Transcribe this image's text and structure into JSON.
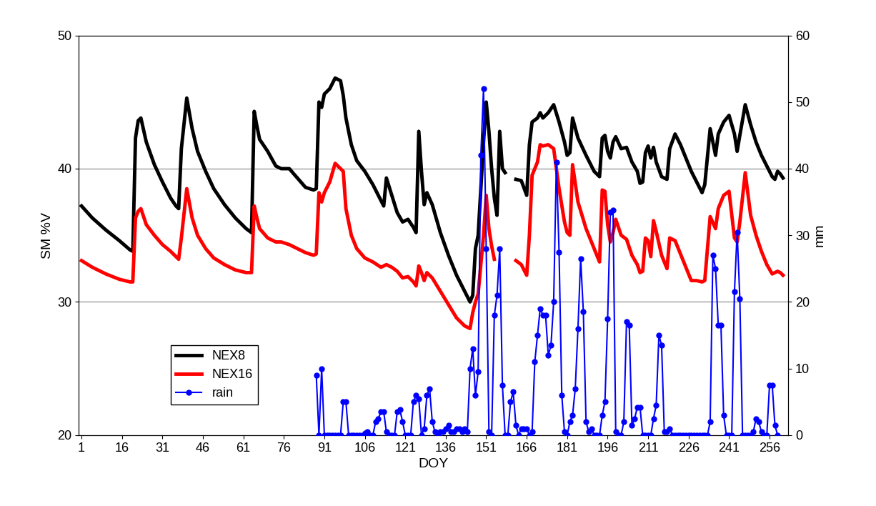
{
  "chart_data": {
    "type": "line",
    "x_label": "DOY",
    "y_label": "SM %V",
    "y2_label": "mm",
    "xlim": [
      0,
      263
    ],
    "xticks": [
      1,
      16,
      31,
      46,
      61,
      76,
      91,
      106,
      121,
      136,
      151,
      166,
      181,
      196,
      211,
      226,
      241,
      256
    ],
    "ylim": [
      20,
      50
    ],
    "yticks": [
      20,
      30,
      40,
      50
    ],
    "y2lim": [
      0,
      60
    ],
    "y2ticks": [
      0,
      10,
      20,
      30,
      40,
      50,
      60
    ],
    "grid": true,
    "legend": "lower left",
    "series": [
      {
        "name": "NEX8",
        "color": "#000000",
        "marker": "none",
        "line_style": "solid",
        "x": [
          1,
          5,
          10,
          15,
          19,
          20,
          21,
          22,
          23,
          25,
          28,
          31,
          34,
          36,
          37,
          38,
          40,
          42,
          44,
          47,
          50,
          54,
          58,
          62,
          64,
          65,
          66,
          67,
          70,
          73,
          75,
          78,
          81,
          84,
          87,
          88,
          89,
          90,
          91,
          93,
          95,
          97,
          98,
          99,
          101,
          103,
          106,
          109,
          112,
          113,
          114,
          116,
          118,
          120,
          122,
          124,
          125,
          126,
          127,
          128,
          129,
          131,
          134,
          137,
          140,
          143,
          145,
          146,
          147,
          148,
          150,
          151,
          152,
          153,
          154,
          155,
          156,
          157,
          158,
          160,
          162,
          164,
          166,
          167,
          168,
          170,
          171,
          172,
          174,
          176,
          178,
          180,
          181,
          182,
          183,
          185,
          188,
          191,
          193,
          194,
          195,
          196,
          197,
          198,
          199,
          201,
          203,
          205,
          207,
          208,
          209,
          210,
          211,
          212,
          213,
          214,
          216,
          218,
          219,
          221,
          223,
          225,
          227,
          229,
          231,
          232,
          234,
          236,
          237,
          239,
          241,
          243,
          244,
          245,
          247,
          249,
          251,
          253,
          255,
          257,
          258,
          259,
          260,
          261
        ],
        "values": [
          37.2,
          36.3,
          35.4,
          34.6,
          33.9,
          33.8,
          42.3,
          43.6,
          43.8,
          42.0,
          40.3,
          39.0,
          37.8,
          37.2,
          37.0,
          41.5,
          45.3,
          43.0,
          41.3,
          39.8,
          38.5,
          37.3,
          36.3,
          35.5,
          35.2,
          44.3,
          43.2,
          42.2,
          41.3,
          40.2,
          40.0,
          40.0,
          39.3,
          38.6,
          38.4,
          38.5,
          45.0,
          44.6,
          45.6,
          46.0,
          46.8,
          46.6,
          45.5,
          43.8,
          41.8,
          40.6,
          39.8,
          38.8,
          37.6,
          37.2,
          39.3,
          38.0,
          36.7,
          36.0,
          36.2,
          35.6,
          35.2,
          42.8,
          39.8,
          37.3,
          38.2,
          37.3,
          35.2,
          33.5,
          32.0,
          30.8,
          30.0,
          30.5,
          34.0,
          35.0,
          42.0,
          45.0,
          42.8,
          40.0,
          37.8,
          36.5,
          42.8,
          40.0,
          39.7,
          null,
          39.2,
          39.1,
          38.0,
          41.8,
          43.5,
          43.8,
          44.2,
          43.8,
          44.2,
          44.8,
          43.5,
          42.0,
          41.0,
          41.2,
          43.8,
          42.3,
          41.0,
          39.8,
          39.4,
          42.3,
          42.5,
          41.3,
          40.8,
          42.0,
          42.4,
          41.5,
          41.6,
          40.5,
          39.8,
          38.9,
          39.0,
          41.2,
          41.7,
          40.8,
          41.6,
          40.5,
          39.4,
          39.2,
          41.5,
          42.6,
          41.8,
          40.8,
          39.8,
          39.0,
          38.2,
          38.8,
          43.0,
          41.0,
          42.6,
          43.5,
          44.0,
          42.6,
          41.3,
          42.5,
          44.8,
          43.3,
          42.0,
          41.0,
          40.2,
          39.4,
          39.2,
          39.8,
          39.6,
          39.3
        ]
      },
      {
        "name": "NEX16",
        "color": "#ff0000",
        "marker": "none",
        "line_style": "solid",
        "x": [
          1,
          5,
          10,
          15,
          19,
          20,
          21,
          22,
          23,
          25,
          28,
          31,
          34,
          36,
          37,
          38,
          40,
          42,
          44,
          47,
          50,
          54,
          58,
          62,
          64,
          65,
          66,
          67,
          70,
          73,
          75,
          78,
          81,
          84,
          87,
          88,
          89,
          90,
          91,
          93,
          95,
          97,
          98,
          99,
          101,
          103,
          106,
          109,
          112,
          113,
          114,
          116,
          118,
          120,
          122,
          124,
          125,
          126,
          127,
          128,
          129,
          131,
          134,
          137,
          140,
          143,
          145,
          146,
          147,
          148,
          150,
          151,
          152,
          153,
          154,
          155,
          156,
          157,
          158,
          160,
          162,
          164,
          166,
          167,
          168,
          170,
          171,
          172,
          174,
          176,
          178,
          180,
          181,
          182,
          183,
          185,
          188,
          191,
          193,
          194,
          195,
          196,
          197,
          198,
          199,
          201,
          203,
          205,
          207,
          208,
          209,
          210,
          211,
          212,
          213,
          214,
          216,
          218,
          219,
          221,
          223,
          225,
          227,
          229,
          231,
          232,
          234,
          236,
          237,
          239,
          241,
          243,
          244,
          245,
          247,
          249,
          251,
          253,
          255,
          257,
          258,
          259,
          260,
          261
        ],
        "values": [
          33.1,
          32.6,
          32.1,
          31.7,
          31.5,
          31.5,
          36.3,
          36.8,
          37.0,
          35.8,
          35.0,
          34.3,
          33.8,
          33.4,
          33.2,
          34.8,
          38.5,
          36.3,
          35.0,
          34.0,
          33.3,
          32.8,
          32.4,
          32.2,
          32.2,
          37.2,
          36.3,
          35.5,
          34.8,
          34.5,
          34.5,
          34.3,
          34.0,
          33.7,
          33.5,
          33.6,
          38.2,
          37.5,
          38.2,
          39.0,
          40.4,
          40.0,
          39.8,
          37.0,
          35.0,
          34.0,
          33.3,
          33.0,
          32.6,
          32.7,
          32.8,
          32.6,
          32.3,
          31.8,
          31.9,
          31.5,
          31.2,
          32.7,
          32.2,
          31.6,
          32.2,
          31.8,
          30.8,
          29.8,
          28.8,
          28.2,
          28.0,
          29.2,
          30.0,
          30.6,
          35.0,
          38.0,
          35.5,
          34.2,
          33.2,
          null,
          null,
          null,
          null,
          null,
          33.1,
          32.8,
          32.0,
          35.0,
          39.5,
          40.5,
          41.8,
          41.7,
          41.8,
          41.5,
          38.5,
          36.0,
          35.2,
          35.0,
          40.3,
          37.5,
          35.5,
          34.0,
          33.0,
          38.4,
          38.3,
          35.8,
          34.5,
          35.2,
          36.2,
          35.0,
          34.7,
          33.5,
          32.8,
          32.2,
          32.3,
          34.8,
          34.6,
          33.4,
          36.1,
          35.3,
          33.5,
          32.5,
          34.8,
          34.6,
          33.6,
          32.6,
          31.6,
          31.6,
          31.5,
          31.6,
          36.4,
          35.5,
          37.0,
          38.0,
          38.3,
          34.8,
          34.5,
          36.0,
          39.7,
          36.5,
          35.0,
          33.8,
          32.8,
          32.1,
          32.2,
          32.3,
          32.2,
          32.0
        ]
      },
      {
        "name": "rain",
        "color": "#0000ff",
        "marker": "circle",
        "line_style": "solid",
        "axis": "y2",
        "x": [
          88,
          89,
          90,
          91,
          92,
          93,
          94,
          95,
          96,
          97,
          98,
          99,
          100,
          101,
          102,
          103,
          104,
          105,
          106,
          107,
          108,
          109,
          110,
          111,
          112,
          113,
          114,
          115,
          116,
          117,
          118,
          119,
          120,
          121,
          122,
          123,
          124,
          125,
          126,
          127,
          128,
          129,
          130,
          131,
          132,
          133,
          134,
          135,
          136,
          137,
          138,
          139,
          140,
          141,
          142,
          143,
          144,
          145,
          146,
          147,
          148,
          149,
          150,
          151,
          152,
          153,
          154,
          155,
          156,
          157,
          158,
          159,
          160,
          161,
          162,
          163,
          164,
          165,
          166,
          167,
          168,
          169,
          170,
          171,
          172,
          173,
          174,
          175,
          176,
          177,
          178,
          179,
          180,
          181,
          182,
          183,
          184,
          185,
          186,
          187,
          188,
          189,
          190,
          191,
          192,
          193,
          194,
          195,
          196,
          197,
          198,
          199,
          200,
          201,
          202,
          203,
          204,
          205,
          206,
          207,
          208,
          209,
          210,
          211,
          212,
          213,
          214,
          215,
          216,
          217,
          218,
          219,
          220,
          221,
          222,
          223,
          224,
          225,
          226,
          227,
          228,
          229,
          230,
          231,
          232,
          233,
          234,
          235,
          236,
          237,
          238,
          239,
          240,
          241,
          242,
          243,
          244,
          245,
          246,
          247,
          248,
          249,
          250,
          251,
          252,
          253,
          254,
          255,
          256,
          257,
          258,
          259
        ],
        "values": [
          9,
          0,
          10,
          0,
          0,
          0,
          0,
          0,
          0,
          0,
          5,
          5,
          0,
          0,
          0,
          0,
          0,
          0,
          0.3,
          0.5,
          0,
          0,
          2,
          2.5,
          3.5,
          3.5,
          0.5,
          0,
          0,
          0,
          3.5,
          3.8,
          2,
          0,
          0,
          0,
          5,
          6,
          5.5,
          0,
          1,
          6,
          7,
          2,
          0.5,
          0,
          0.5,
          0.5,
          1,
          1.5,
          0.5,
          0.5,
          1,
          1,
          0.5,
          1,
          0.5,
          10,
          13,
          6,
          9.5,
          42,
          52,
          28,
          0.5,
          0,
          18,
          21,
          28,
          7.5,
          0,
          0,
          5,
          6.5,
          1.5,
          0,
          1,
          1,
          1,
          0,
          0.5,
          11,
          15,
          19,
          18,
          18,
          12,
          13.5,
          20,
          41,
          27.5,
          6,
          0.5,
          0,
          2,
          3,
          7,
          16,
          26.5,
          18.5,
          2,
          0.5,
          1,
          0,
          0,
          0,
          3,
          5,
          17.5,
          33.5,
          33.8,
          0.5,
          0,
          0,
          2,
          17,
          16.5,
          1.5,
          2.5,
          4.2,
          4.2,
          0,
          0,
          0,
          0,
          2.5,
          4.5,
          15,
          13.5,
          0.5,
          0.5,
          1,
          0,
          0,
          0,
          0,
          0,
          0,
          0,
          0,
          0,
          0,
          0,
          0,
          0,
          0,
          2,
          27,
          25,
          16.5,
          16.5,
          3,
          0,
          0,
          0,
          21.5,
          30.5,
          20.5,
          0,
          0,
          0,
          0,
          0.5,
          2.5,
          2,
          0.5,
          0,
          0,
          7.5,
          7.5,
          1.5,
          0
        ]
      }
    ]
  }
}
